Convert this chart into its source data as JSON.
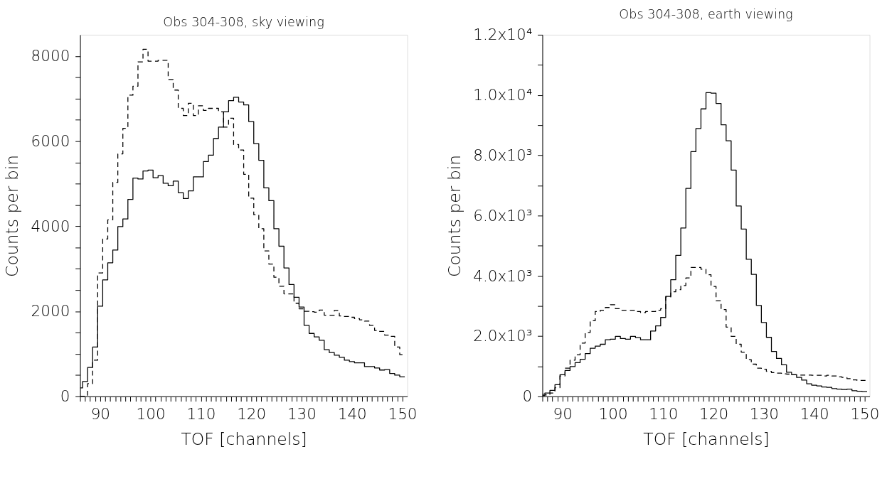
{
  "chart_data": [
    {
      "type": "histogram",
      "title": "Obs 304-308, sky viewing",
      "xlabel": "TOF [channels]",
      "ylabel": "Counts per bin",
      "bins": [
        86,
        86.5,
        87.5,
        88.5,
        89.5,
        90.5,
        91.5,
        92.5,
        93.5,
        94.5,
        95.5,
        96.5,
        97.5,
        98.5,
        99.5,
        100.5,
        101.5,
        102.5,
        103.5,
        104.5,
        105.5,
        106.5,
        107.5,
        108.5,
        109.5,
        110.5,
        111.5,
        112.5,
        113.5,
        114.5,
        115.5,
        116.5,
        117.5,
        118.5,
        119.5,
        120.5,
        121.5,
        122.5,
        123.5,
        124.5,
        125.5,
        126.5,
        127.5,
        128.5,
        129.5,
        130.5,
        131.5,
        132.5,
        133.5,
        134.5,
        135.5,
        136.5,
        137.5,
        138.5,
        139.5,
        140.5,
        141.5,
        142.5,
        143.5,
        144.5,
        145.5,
        146.5,
        147.5,
        148.5,
        149.5,
        150.5
      ],
      "series": [
        {
          "color": "#000000",
          "line_style": "solid",
          "values": [
            200,
            350,
            680,
            1160,
            2120,
            2740,
            3140,
            3440,
            3990,
            4170,
            4630,
            5130,
            5110,
            5300,
            5320,
            5140,
            5190,
            5010,
            4950,
            5060,
            4790,
            4650,
            4830,
            5160,
            5160,
            5520,
            5670,
            6060,
            6330,
            6690,
            6950,
            7030,
            6920,
            6850,
            6460,
            5940,
            5550,
            4900,
            4600,
            3940,
            3530,
            3020,
            2630,
            2330,
            2100,
            1670,
            1480,
            1400,
            1320,
            1100,
            1030,
            970,
            920,
            850,
            820,
            790,
            790,
            700,
            700,
            670,
            620,
            630,
            540,
            500,
            460
          ]
        },
        {
          "color": "#000000",
          "line_style": "dashed",
          "values": [
            0,
            0,
            300,
            850,
            2900,
            3700,
            4150,
            5030,
            5700,
            6300,
            7080,
            7290,
            7860,
            8160,
            7880,
            7880,
            7900,
            7900,
            7450,
            7200,
            6770,
            6600,
            6890,
            6600,
            6830,
            6720,
            6770,
            6770,
            6690,
            6330,
            6540,
            5920,
            5790,
            5220,
            4660,
            4270,
            3940,
            3420,
            3110,
            2800,
            2590,
            2410,
            2410,
            2190,
            2060,
            2000,
            1990,
            1980,
            2030,
            1910,
            1910,
            2020,
            1890,
            1880,
            1860,
            1830,
            1800,
            1770,
            1670,
            1550,
            1530,
            1440,
            1410,
            1160,
            980
          ]
        }
      ],
      "xlim": [
        86,
        151
      ],
      "ylim": [
        0,
        8500
      ],
      "xticks": [
        {
          "value": 86,
          "label": null
        },
        {
          "value": 87,
          "label": null
        },
        {
          "value": 88,
          "label": null
        },
        {
          "value": 89,
          "label": null
        },
        90,
        {
          "value": 91,
          "label": null
        },
        {
          "value": 92,
          "label": null
        },
        {
          "value": 93,
          "label": null
        },
        {
          "value": 94,
          "label": null
        },
        {
          "value": 95,
          "label": null
        },
        {
          "value": 96,
          "label": null
        },
        {
          "value": 97,
          "label": null
        },
        {
          "value": 98,
          "label": null
        },
        {
          "value": 99,
          "label": null
        },
        100,
        {
          "value": 101,
          "label": null
        },
        {
          "value": 102,
          "label": null
        },
        {
          "value": 103,
          "label": null
        },
        {
          "value": 104,
          "label": null
        },
        {
          "value": 105,
          "label": null
        },
        {
          "value": 106,
          "label": null
        },
        {
          "value": 107,
          "label": null
        },
        {
          "value": 108,
          "label": null
        },
        {
          "value": 109,
          "label": null
        },
        110,
        {
          "value": 111,
          "label": null
        },
        {
          "value": 112,
          "label": null
        },
        {
          "value": 113,
          "label": null
        },
        {
          "value": 114,
          "label": null
        },
        {
          "value": 115,
          "label": null
        },
        {
          "value": 116,
          "label": null
        },
        {
          "value": 117,
          "label": null
        },
        {
          "value": 118,
          "label": null
        },
        {
          "value": 119,
          "label": null
        },
        120,
        {
          "value": 121,
          "label": null
        },
        {
          "value": 122,
          "label": null
        },
        {
          "value": 123,
          "label": null
        },
        {
          "value": 124,
          "label": null
        },
        {
          "value": 125,
          "label": null
        },
        {
          "value": 126,
          "label": null
        },
        {
          "value": 127,
          "label": null
        },
        {
          "value": 128,
          "label": null
        },
        {
          "value": 129,
          "label": null
        },
        130,
        {
          "value": 131,
          "label": null
        },
        {
          "value": 132,
          "label": null
        },
        {
          "value": 133,
          "label": null
        },
        {
          "value": 134,
          "label": null
        },
        {
          "value": 135,
          "label": null
        },
        {
          "value": 136,
          "label": null
        },
        {
          "value": 137,
          "label": null
        },
        {
          "value": 138,
          "label": null
        },
        {
          "value": 139,
          "label": null
        },
        140,
        {
          "value": 141,
          "label": null
        },
        {
          "value": 142,
          "label": null
        },
        {
          "value": 143,
          "label": null
        },
        {
          "value": 144,
          "label": null
        },
        {
          "value": 145,
          "label": null
        },
        {
          "value": 146,
          "label": null
        },
        {
          "value": 147,
          "label": null
        },
        {
          "value": 148,
          "label": null
        },
        {
          "value": 149,
          "label": null
        },
        150
      ],
      "yticks": [
        0,
        {
          "value": 500,
          "label": null
        },
        {
          "value": 1000,
          "label": null
        },
        {
          "value": 1500,
          "label": null
        },
        2000,
        {
          "value": 2500,
          "label": null
        },
        {
          "value": 3000,
          "label": null
        },
        {
          "value": 3500,
          "label": null
        },
        4000,
        {
          "value": 4500,
          "label": null
        },
        {
          "value": 5000,
          "label": null
        },
        {
          "value": 5500,
          "label": null
        },
        6000,
        {
          "value": 6500,
          "label": null
        },
        {
          "value": 7000,
          "label": null
        },
        {
          "value": 7500,
          "label": null
        },
        8000
      ]
    },
    {
      "type": "histogram",
      "title": "Obs 304-308, earth viewing",
      "xlabel": "TOF [channels]",
      "ylabel": "Counts per bin",
      "bins": [
        86,
        86.5,
        87.5,
        88.5,
        89.5,
        90.5,
        91.5,
        92.5,
        93.5,
        94.5,
        95.5,
        96.5,
        97.5,
        98.5,
        99.5,
        100.5,
        101.5,
        102.5,
        103.5,
        104.5,
        105.5,
        106.5,
        107.5,
        108.5,
        109.5,
        110.5,
        111.5,
        112.5,
        113.5,
        114.5,
        115.5,
        116.5,
        117.5,
        118.5,
        119.5,
        120.5,
        121.5,
        122.5,
        123.5,
        124.5,
        125.5,
        126.5,
        127.5,
        128.5,
        129.5,
        130.5,
        131.5,
        132.5,
        133.5,
        134.5,
        135.5,
        136.5,
        137.5,
        138.5,
        139.5,
        140.5,
        141.5,
        142.5,
        143.5,
        144.5,
        145.5,
        146.5,
        147.5,
        148.5,
        149.5,
        150.5
      ],
      "series": [
        {
          "color": "#000000",
          "line_style": "solid",
          "values": [
            70,
            110,
            200,
            390,
            720,
            860,
            990,
            1120,
            1230,
            1420,
            1600,
            1670,
            1730,
            1880,
            1900,
            1990,
            1920,
            1900,
            1990,
            1950,
            1880,
            1880,
            2170,
            2340,
            2620,
            3320,
            3870,
            4680,
            5590,
            6900,
            8120,
            8890,
            9540,
            10080,
            10060,
            9720,
            9010,
            8480,
            7510,
            6320,
            5550,
            4550,
            4050,
            3020,
            2450,
            1960,
            1490,
            1260,
            1050,
            800,
            720,
            630,
            540,
            420,
            370,
            350,
            310,
            300,
            260,
            240,
            230,
            240,
            190,
            170,
            160
          ]
        },
        {
          "color": "#000000",
          "line_style": "dashed",
          "values": [
            30,
            50,
            110,
            290,
            680,
            940,
            1200,
            1380,
            1770,
            2120,
            2510,
            2820,
            2860,
            2950,
            3040,
            2910,
            2860,
            2860,
            2860,
            2820,
            2780,
            2820,
            2820,
            2860,
            2910,
            3300,
            3470,
            3540,
            3680,
            3930,
            4280,
            4280,
            4220,
            4040,
            3650,
            3170,
            2880,
            2300,
            1990,
            1730,
            1470,
            1220,
            1070,
            940,
            900,
            830,
            790,
            770,
            750,
            740,
            720,
            710,
            710,
            710,
            700,
            700,
            680,
            700,
            680,
            650,
            630,
            590,
            550,
            530,
            530
          ]
        }
      ],
      "xlim": [
        86,
        151
      ],
      "ylim": [
        0,
        12000
      ],
      "xticks": [
        {
          "value": 86,
          "label": null
        },
        {
          "value": 87,
          "label": null
        },
        {
          "value": 88,
          "label": null
        },
        {
          "value": 89,
          "label": null
        },
        90,
        {
          "value": 91,
          "label": null
        },
        {
          "value": 92,
          "label": null
        },
        {
          "value": 93,
          "label": null
        },
        {
          "value": 94,
          "label": null
        },
        {
          "value": 95,
          "label": null
        },
        {
          "value": 96,
          "label": null
        },
        {
          "value": 97,
          "label": null
        },
        {
          "value": 98,
          "label": null
        },
        {
          "value": 99,
          "label": null
        },
        100,
        {
          "value": 101,
          "label": null
        },
        {
          "value": 102,
          "label": null
        },
        {
          "value": 103,
          "label": null
        },
        {
          "value": 104,
          "label": null
        },
        {
          "value": 105,
          "label": null
        },
        {
          "value": 106,
          "label": null
        },
        {
          "value": 107,
          "label": null
        },
        {
          "value": 108,
          "label": null
        },
        {
          "value": 109,
          "label": null
        },
        110,
        {
          "value": 111,
          "label": null
        },
        {
          "value": 112,
          "label": null
        },
        {
          "value": 113,
          "label": null
        },
        {
          "value": 114,
          "label": null
        },
        {
          "value": 115,
          "label": null
        },
        {
          "value": 116,
          "label": null
        },
        {
          "value": 117,
          "label": null
        },
        {
          "value": 118,
          "label": null
        },
        {
          "value": 119,
          "label": null
        },
        120,
        {
          "value": 121,
          "label": null
        },
        {
          "value": 122,
          "label": null
        },
        {
          "value": 123,
          "label": null
        },
        {
          "value": 124,
          "label": null
        },
        {
          "value": 125,
          "label": null
        },
        {
          "value": 126,
          "label": null
        },
        {
          "value": 127,
          "label": null
        },
        {
          "value": 128,
          "label": null
        },
        {
          "value": 129,
          "label": null
        },
        130,
        {
          "value": 131,
          "label": null
        },
        {
          "value": 132,
          "label": null
        },
        {
          "value": 133,
          "label": null
        },
        {
          "value": 134,
          "label": null
        },
        {
          "value": 135,
          "label": null
        },
        {
          "value": 136,
          "label": null
        },
        {
          "value": 137,
          "label": null
        },
        {
          "value": 138,
          "label": null
        },
        {
          "value": 139,
          "label": null
        },
        140,
        {
          "value": 141,
          "label": null
        },
        {
          "value": 142,
          "label": null
        },
        {
          "value": 143,
          "label": null
        },
        {
          "value": 144,
          "label": null
        },
        {
          "value": 145,
          "label": null
        },
        {
          "value": 146,
          "label": null
        },
        {
          "value": 147,
          "label": null
        },
        {
          "value": 148,
          "label": null
        },
        {
          "value": 149,
          "label": null
        },
        150
      ],
      "yticks": [
        0,
        {
          "value": 1000,
          "label": null
        },
        {
          "value": 2000,
          "label": "2.0x10³"
        },
        {
          "value": 3000,
          "label": null
        },
        {
          "value": 4000,
          "label": "4.0x10³"
        },
        {
          "value": 5000,
          "label": null
        },
        {
          "value": 6000,
          "label": "6.0x10³"
        },
        {
          "value": 7000,
          "label": null
        },
        {
          "value": 8000,
          "label": "8.0x10³"
        },
        {
          "value": 9000,
          "label": null
        },
        {
          "value": 10000,
          "label": "1.0x10⁴"
        },
        {
          "value": 11000,
          "label": null
        },
        {
          "value": 12000,
          "label": "1.2x10⁴"
        }
      ]
    }
  ]
}
